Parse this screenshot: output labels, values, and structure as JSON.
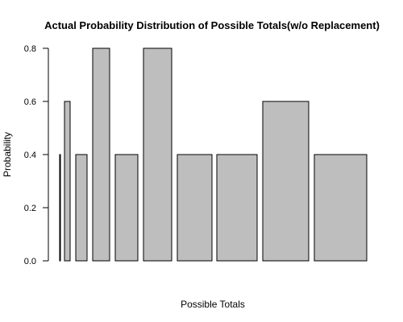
{
  "chart_data": {
    "type": "bar",
    "title": "Actual Probability Distribution of Possible Totals(w/o Replacement)",
    "xlabel": "Possible Totals",
    "ylabel": "Probability",
    "ylim": [
      0,
      0.8
    ],
    "yticks": [
      "0.0",
      "0.2",
      "0.4",
      "0.6",
      "0.8"
    ],
    "ytick_values": [
      0,
      0.2,
      0.4,
      0.6,
      0.8
    ],
    "values": [
      0.4,
      0.6,
      0.4,
      0.8,
      0.4,
      0.8,
      0.4,
      0.4,
      0.6,
      0.4
    ],
    "bar_color": "#bebebe",
    "grid": false,
    "legend": "none"
  }
}
